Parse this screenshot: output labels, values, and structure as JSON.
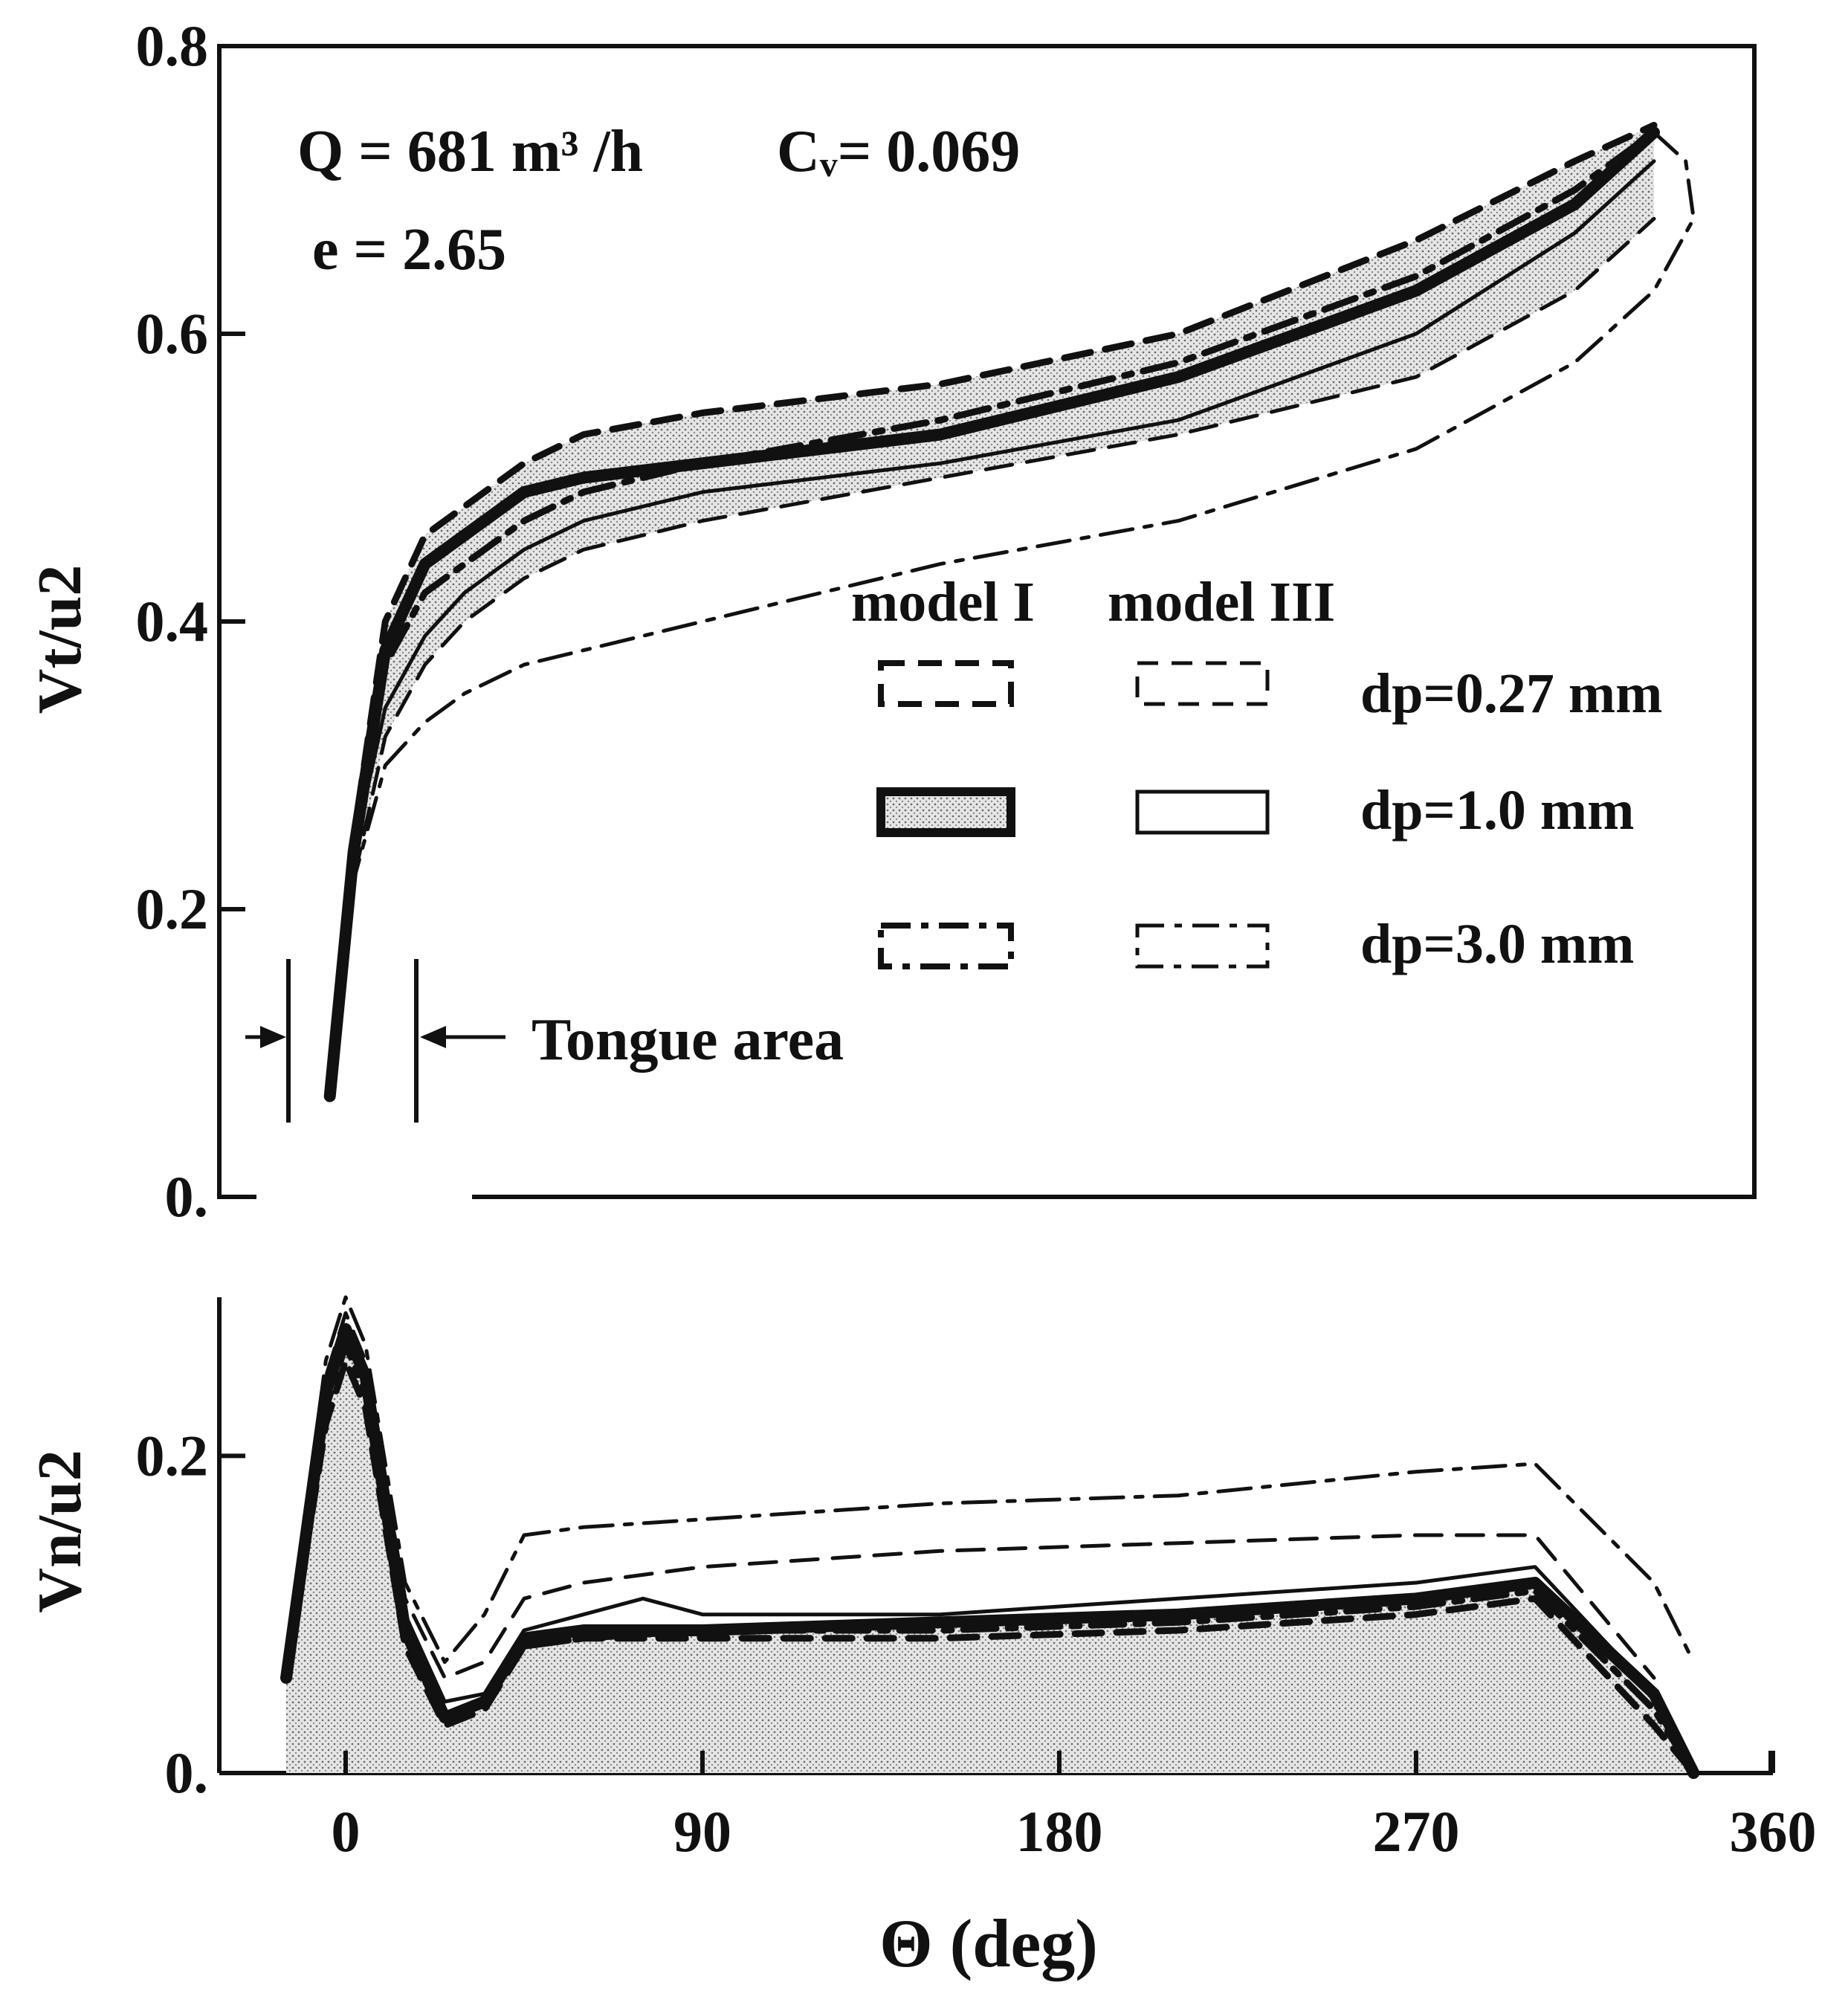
{
  "chart_data": [
    {
      "type": "line",
      "panel": "upper",
      "ylabel": "Vt/u2",
      "ylim": [
        0,
        0.8
      ],
      "xlim": [
        -30,
        360
      ],
      "yticks": [
        "0.",
        "0.2",
        "0.4",
        "0.6",
        "0.8"
      ],
      "annotations": {
        "flow": "Q = 681 m³ /h",
        "cv": "Cᵥ= 0.069",
        "e": "e = 2.65",
        "tongue": "Tongue area"
      },
      "legend": {
        "placement": "right-middle",
        "col1": "model I",
        "col2": "model III",
        "rows": [
          "dp=0.27 mm",
          "dp=1.0 mm",
          "dp=3.0 mm"
        ]
      },
      "series": [
        {
          "name": "model I dp=0.27 mm",
          "style": "dashed",
          "x": [
            -4,
            2,
            10,
            20,
            30,
            45,
            60,
            90,
            150,
            210,
            270,
            310,
            330
          ],
          "y": [
            0.07,
            0.25,
            0.4,
            0.46,
            0.48,
            0.51,
            0.53,
            0.545,
            0.565,
            0.6,
            0.665,
            0.72,
            0.745
          ]
        },
        {
          "name": "model I dp=1.0 mm",
          "style": "thick-band",
          "x": [
            -4,
            2,
            10,
            20,
            30,
            45,
            60,
            90,
            150,
            210,
            270,
            310,
            330
          ],
          "y": [
            0.07,
            0.24,
            0.38,
            0.44,
            0.46,
            0.49,
            0.5,
            0.51,
            0.53,
            0.57,
            0.63,
            0.69,
            0.74
          ]
        },
        {
          "name": "model I dp=3.0 mm",
          "style": "dashdot",
          "x": [
            -4,
            2,
            10,
            20,
            30,
            45,
            60,
            90,
            150,
            210,
            270,
            310,
            330
          ],
          "y": [
            0.07,
            0.23,
            0.37,
            0.42,
            0.44,
            0.47,
            0.49,
            0.51,
            0.54,
            0.58,
            0.64,
            0.7,
            0.74
          ]
        },
        {
          "name": "model III dp=0.27 mm",
          "style": "dashed",
          "x": [
            -4,
            2,
            10,
            20,
            30,
            45,
            60,
            90,
            150,
            210,
            270,
            310,
            330
          ],
          "y": [
            0.08,
            0.22,
            0.32,
            0.37,
            0.4,
            0.43,
            0.45,
            0.47,
            0.5,
            0.53,
            0.57,
            0.63,
            0.68
          ]
        },
        {
          "name": "model III dp=1.0 mm",
          "style": "solid",
          "x": [
            -4,
            2,
            10,
            20,
            30,
            45,
            60,
            90,
            150,
            210,
            270,
            310,
            330
          ],
          "y": [
            0.08,
            0.24,
            0.34,
            0.39,
            0.42,
            0.45,
            0.47,
            0.49,
            0.51,
            0.54,
            0.6,
            0.67,
            0.72
          ]
        },
        {
          "name": "model III dp=3.0 mm",
          "style": "dashdot",
          "x": [
            -4,
            2,
            10,
            20,
            30,
            45,
            60,
            90,
            150,
            210,
            270,
            310,
            330,
            340,
            338,
            330
          ],
          "y": [
            0.08,
            0.22,
            0.3,
            0.33,
            0.35,
            0.37,
            0.38,
            0.4,
            0.44,
            0.47,
            0.52,
            0.58,
            0.63,
            0.68,
            0.72,
            0.74
          ]
        }
      ]
    },
    {
      "type": "area",
      "panel": "lower",
      "ylabel": "Vn/u2",
      "xlabel": "Θ  (deg)",
      "ylim": [
        0,
        0.3
      ],
      "xlim": [
        -30,
        360
      ],
      "yticks": [
        "0.",
        "0.2"
      ],
      "xticks": [
        0,
        90,
        180,
        270,
        360
      ],
      "series": [
        {
          "name": "model I dp=0.27 mm",
          "style": "dashed",
          "x": [
            -15,
            -5,
            0,
            5,
            15,
            25,
            35,
            45,
            60,
            90,
            150,
            210,
            270,
            300,
            330,
            340
          ],
          "y": [
            0.06,
            0.22,
            0.26,
            0.23,
            0.08,
            0.03,
            0.04,
            0.08,
            0.085,
            0.085,
            0.085,
            0.09,
            0.1,
            0.11,
            0.03,
            0.0
          ]
        },
        {
          "name": "model I dp=1.0 mm",
          "style": "thick-band",
          "x": [
            -15,
            -5,
            0,
            5,
            15,
            25,
            35,
            45,
            60,
            90,
            150,
            210,
            270,
            300,
            330,
            340
          ],
          "y": [
            0.06,
            0.24,
            0.28,
            0.25,
            0.09,
            0.035,
            0.045,
            0.085,
            0.09,
            0.09,
            0.095,
            0.1,
            0.11,
            0.12,
            0.05,
            0.0
          ]
        },
        {
          "name": "model I dp=3.0 mm",
          "style": "dashdot",
          "x": [
            -15,
            -5,
            0,
            5,
            15,
            25,
            35,
            45,
            60,
            90,
            150,
            210,
            270,
            300,
            330,
            340
          ],
          "y": [
            0.06,
            0.23,
            0.27,
            0.24,
            0.09,
            0.035,
            0.045,
            0.08,
            0.085,
            0.09,
            0.09,
            0.095,
            0.105,
            0.115,
            0.04,
            0.0
          ]
        },
        {
          "name": "model III dp=0.27 mm",
          "style": "dashed",
          "x": [
            -15,
            -5,
            0,
            5,
            15,
            25,
            35,
            45,
            60,
            90,
            150,
            210,
            270,
            300,
            330
          ],
          "y": [
            0.07,
            0.25,
            0.29,
            0.26,
            0.11,
            0.06,
            0.07,
            0.11,
            0.12,
            0.13,
            0.14,
            0.145,
            0.15,
            0.15,
            0.06
          ]
        },
        {
          "name": "model III dp=1.0 mm",
          "style": "solid",
          "x": [
            -15,
            -5,
            0,
            5,
            15,
            25,
            35,
            45,
            60,
            75,
            90,
            150,
            210,
            270,
            300,
            330
          ],
          "y": [
            0.06,
            0.24,
            0.28,
            0.25,
            0.1,
            0.045,
            0.05,
            0.09,
            0.1,
            0.11,
            0.1,
            0.1,
            0.11,
            0.12,
            0.13,
            0.05
          ]
        },
        {
          "name": "model III dp=3.0 mm",
          "style": "dashdot",
          "x": [
            -15,
            -5,
            0,
            5,
            15,
            25,
            35,
            45,
            60,
            90,
            150,
            210,
            270,
            300,
            330,
            340
          ],
          "y": [
            0.07,
            0.26,
            0.3,
            0.27,
            0.12,
            0.07,
            0.1,
            0.15,
            0.155,
            0.16,
            0.17,
            0.175,
            0.19,
            0.195,
            0.12,
            0.07
          ]
        }
      ]
    }
  ]
}
